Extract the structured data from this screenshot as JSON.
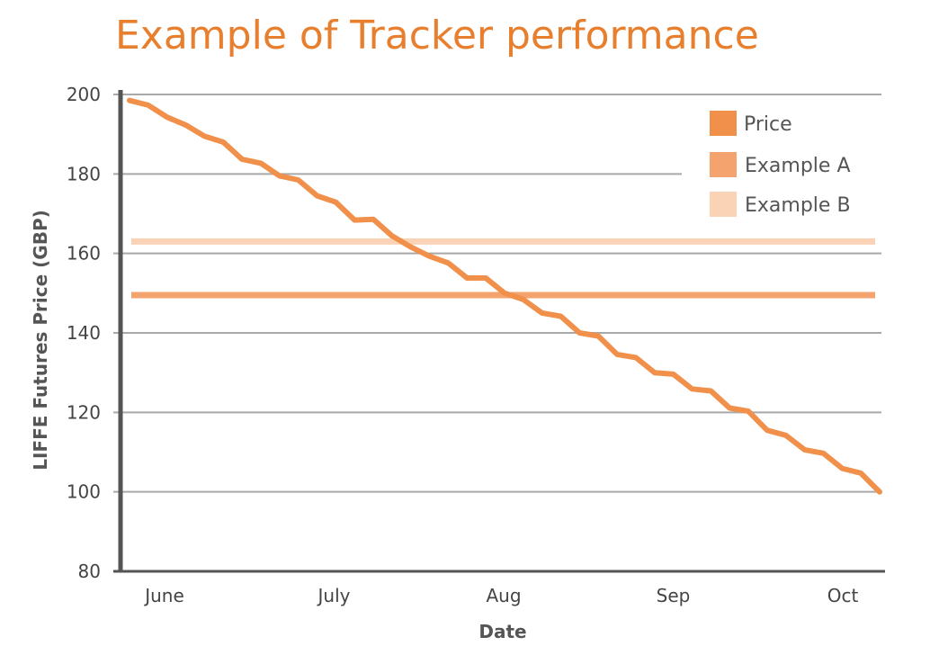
{
  "chart_data": {
    "type": "line",
    "title": "Example of Tracker performance",
    "xlabel": "Date",
    "ylabel": "LIFFE Futures Price (GBP)",
    "ylim": [
      80,
      200
    ],
    "yticks": [
      80,
      100,
      120,
      140,
      160,
      180,
      200
    ],
    "x_tick_labels": [
      "June",
      "July",
      "Aug",
      "Sep",
      "Oct"
    ],
    "grid": true,
    "legend_position": "top-right",
    "series": [
      {
        "name": "Price",
        "color": "#f0904a",
        "style": "line",
        "values": [
          198.5,
          197.3,
          194.3,
          192.3,
          189.5,
          188.0,
          183.7,
          182.7,
          179.5,
          178.5,
          174.5,
          172.9,
          168.4,
          168.6,
          164.4,
          161.6,
          159.3,
          157.6,
          153.8,
          153.8,
          150.0,
          148.4,
          145.0,
          144.2,
          140.0,
          139.2,
          134.6,
          133.8,
          130.0,
          129.6,
          125.9,
          125.4,
          121.1,
          120.3,
          115.5,
          114.2,
          110.6,
          109.7,
          105.9,
          104.7,
          100.0
        ]
      },
      {
        "name": "Example A",
        "color": "#f5a36e",
        "style": "constant",
        "value": 149.5
      },
      {
        "name": "Example B",
        "color": "#fad3b6",
        "style": "constant",
        "value": 163
      }
    ]
  }
}
